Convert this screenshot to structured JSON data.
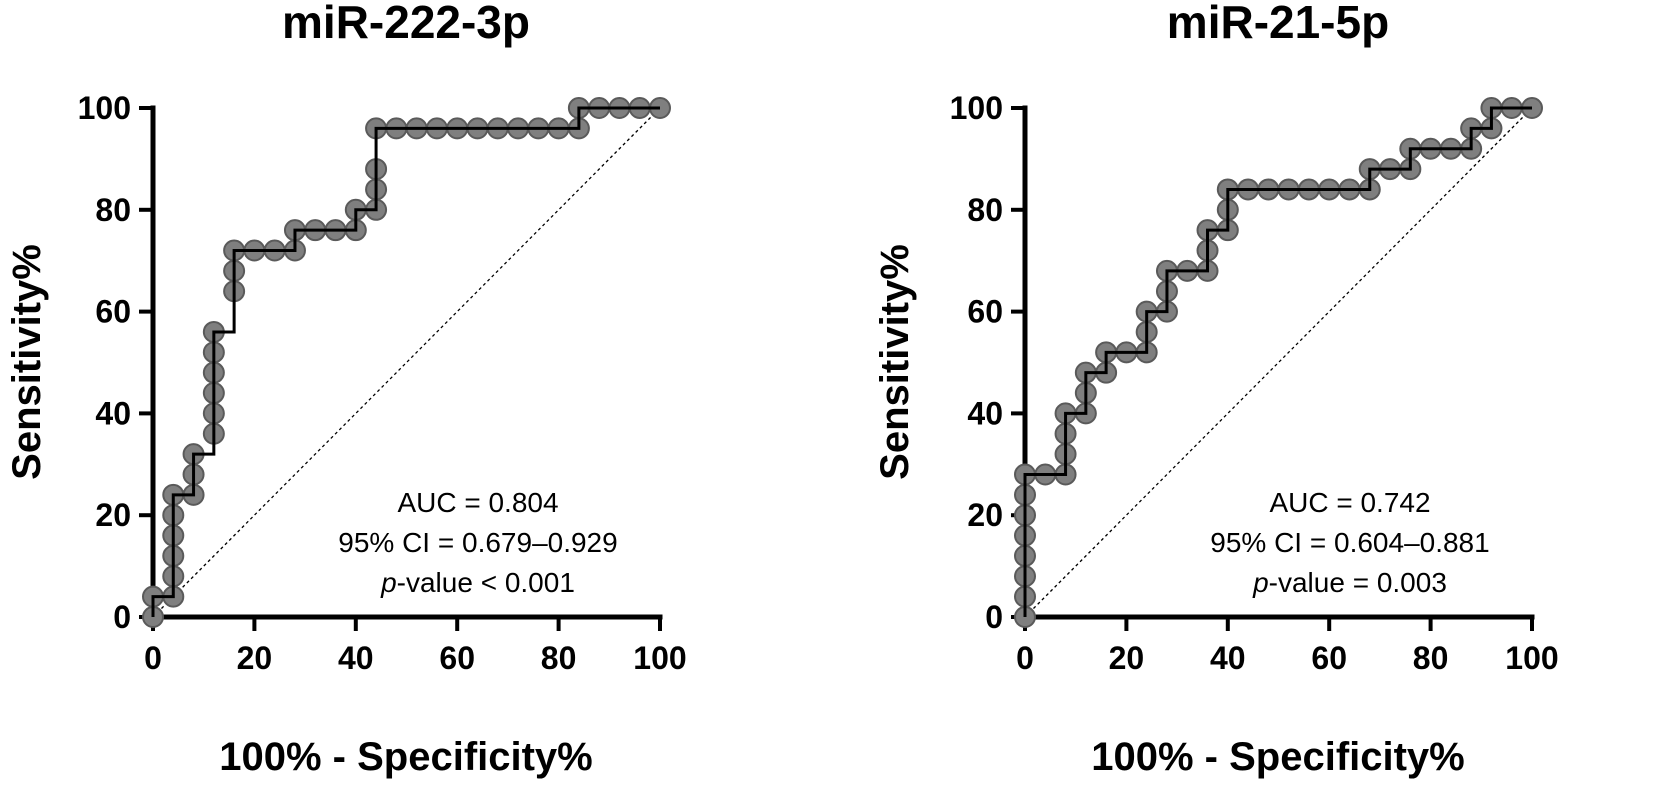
{
  "chart_data": [
    {
      "type": "line",
      "title": "miR-222-3p",
      "xlabel": "100% - Specificity%",
      "ylabel": "Sensitivity%",
      "xlim": [
        0,
        100
      ],
      "ylim": [
        0,
        100
      ],
      "xticks": [
        "0",
        "20",
        "40",
        "60",
        "80",
        "100"
      ],
      "yticks": [
        "0",
        "20",
        "40",
        "60",
        "80",
        "100"
      ],
      "series": [
        {
          "name": "ROC curve",
          "x": [
            0,
            0,
            4,
            4,
            4,
            4,
            4,
            4,
            8,
            8,
            8,
            12,
            12,
            12,
            12,
            12,
            12,
            16,
            16,
            16,
            20,
            24,
            28,
            28,
            32,
            36,
            40,
            40,
            44,
            44,
            44,
            44,
            48,
            52,
            56,
            60,
            64,
            68,
            72,
            76,
            80,
            84,
            84,
            88,
            92,
            96,
            100
          ],
          "y": [
            0,
            4,
            4,
            8,
            12,
            16,
            20,
            24,
            24,
            28,
            32,
            36,
            40,
            44,
            48,
            52,
            56,
            64,
            68,
            72,
            72,
            72,
            72,
            76,
            76,
            76,
            76,
            80,
            80,
            84,
            88,
            96,
            96,
            96,
            96,
            96,
            96,
            96,
            96,
            96,
            96,
            96,
            100,
            100,
            100,
            100,
            100
          ]
        },
        {
          "name": "Reference line",
          "x": [
            0,
            100
          ],
          "y": [
            0,
            100
          ]
        }
      ],
      "annotations": {
        "auc": "AUC = 0.804",
        "ci": "95% CI = 0.679–0.929",
        "p_prefix": "p",
        "p_rest": "-value < 0.001"
      }
    },
    {
      "type": "line",
      "title": "miR-21-5p",
      "xlabel": "100% - Specificity%",
      "ylabel": "Sensitivity%",
      "xlim": [
        0,
        100
      ],
      "ylim": [
        0,
        100
      ],
      "xticks": [
        "0",
        "20",
        "40",
        "60",
        "80",
        "100"
      ],
      "yticks": [
        "0",
        "20",
        "40",
        "60",
        "80",
        "100"
      ],
      "series": [
        {
          "name": "ROC curve",
          "x": [
            0,
            0,
            0,
            0,
            0,
            0,
            0,
            0,
            4,
            8,
            8,
            8,
            8,
            12,
            12,
            12,
            16,
            16,
            20,
            24,
            24,
            24,
            28,
            28,
            28,
            32,
            36,
            36,
            36,
            40,
            40,
            40,
            44,
            48,
            52,
            56,
            60,
            64,
            68,
            68,
            72,
            76,
            76,
            80,
            84,
            88,
            88,
            92,
            92,
            96,
            100
          ],
          "y": [
            0,
            4,
            8,
            12,
            16,
            20,
            24,
            28,
            28,
            28,
            32,
            36,
            40,
            40,
            44,
            48,
            48,
            52,
            52,
            52,
            56,
            60,
            60,
            64,
            68,
            68,
            68,
            72,
            76,
            76,
            80,
            84,
            84,
            84,
            84,
            84,
            84,
            84,
            84,
            88,
            88,
            88,
            92,
            92,
            92,
            92,
            96,
            96,
            100,
            100,
            100
          ]
        },
        {
          "name": "Reference line",
          "x": [
            0,
            100
          ],
          "y": [
            0,
            100
          ]
        }
      ],
      "annotations": {
        "auc": "AUC = 0.742",
        "ci": "95% CI = 0.604–0.881",
        "p_prefix": "p",
        "p_rest": "-value = 0.003"
      }
    }
  ]
}
